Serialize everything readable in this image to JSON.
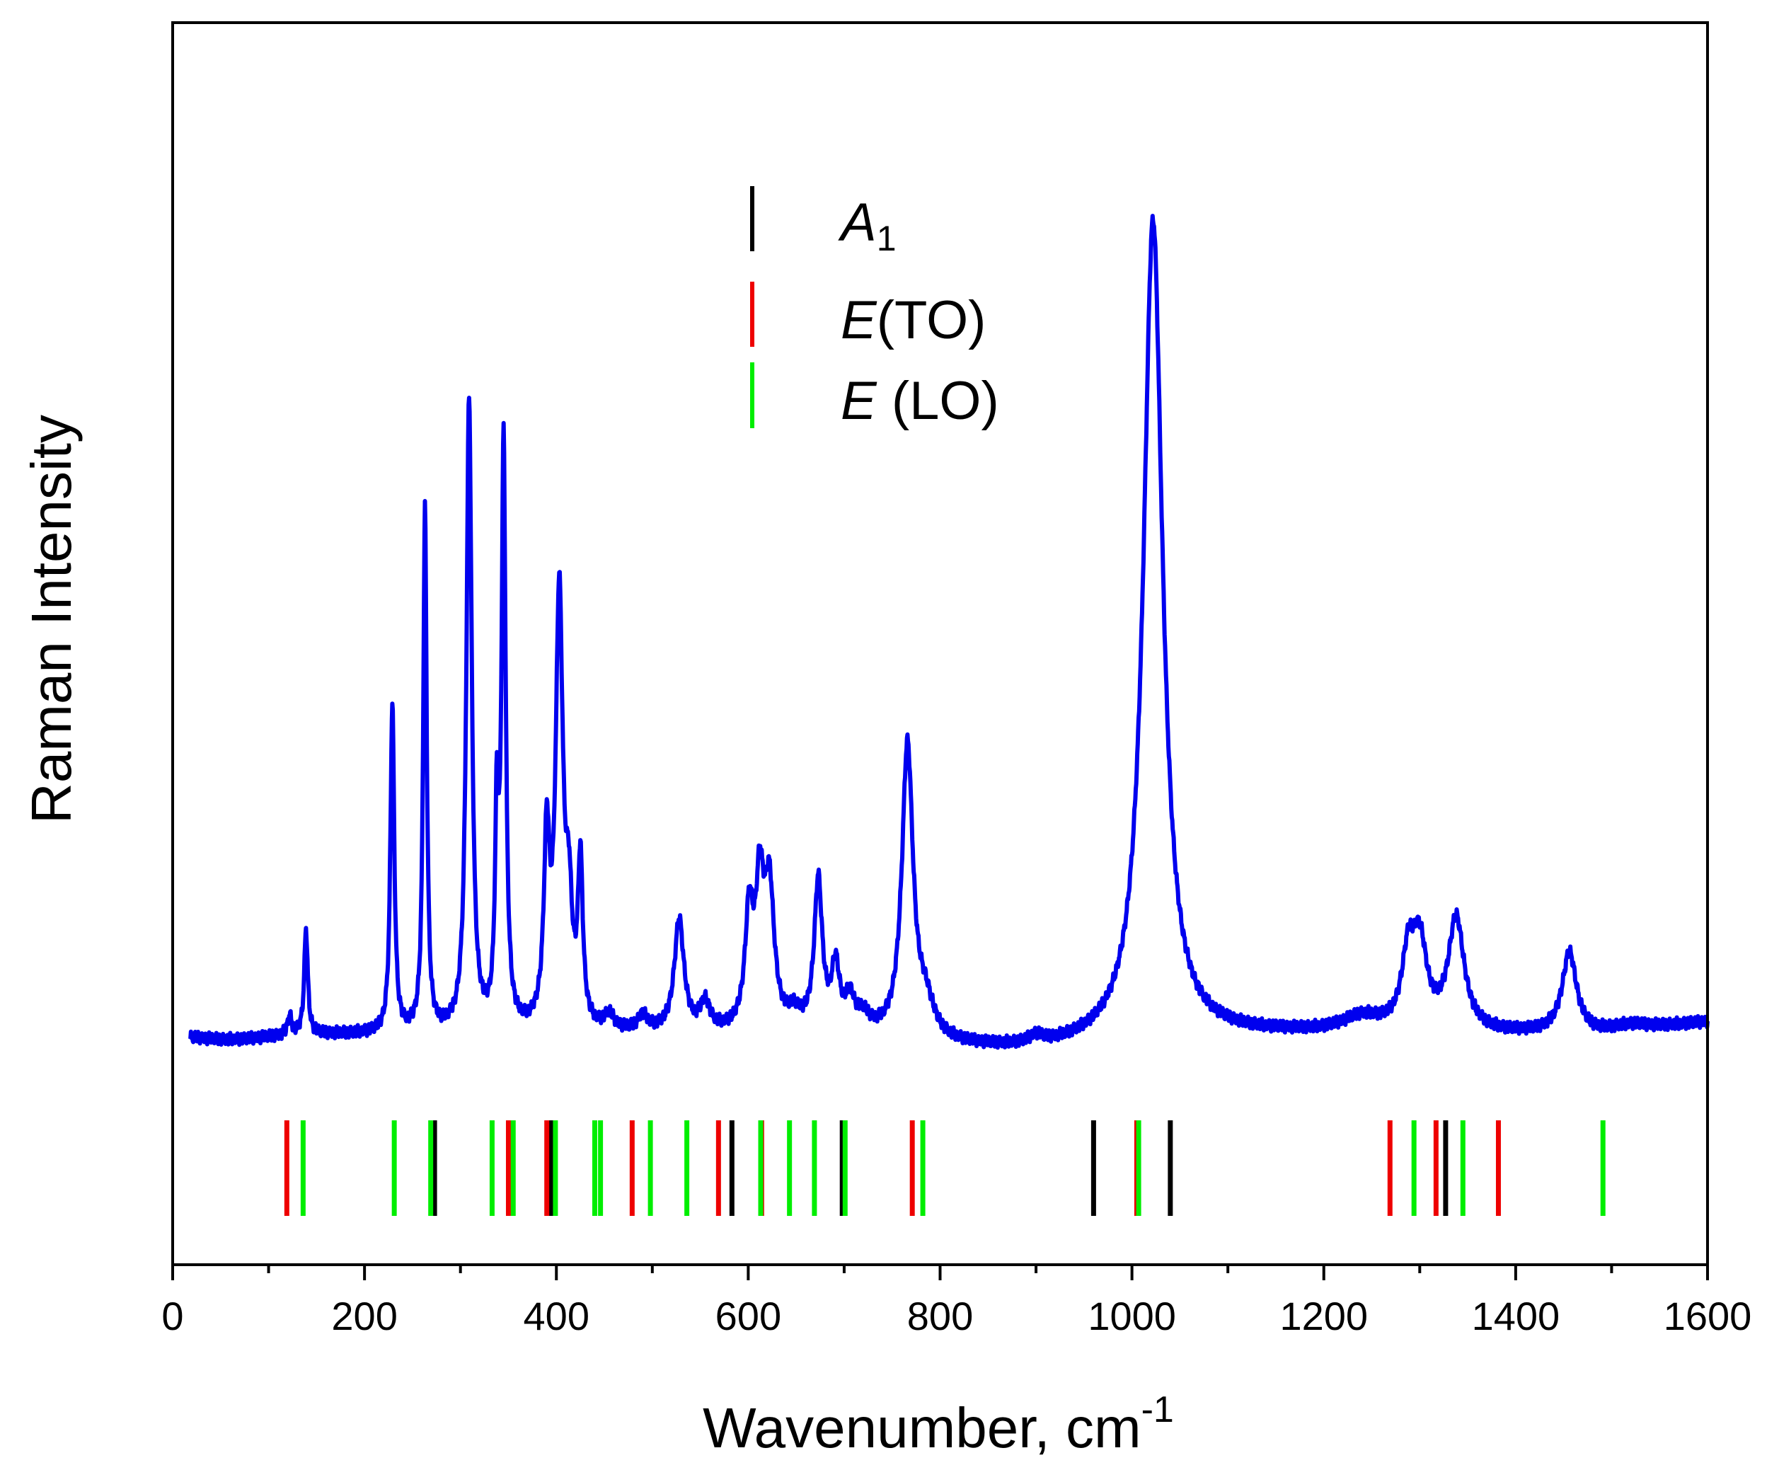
{
  "chart_data": {
    "type": "line",
    "title": "",
    "xlabel": "Wavenumber, cm",
    "xlabel_superscript": "-1",
    "ylabel": "Raman Intensity",
    "xlim": [
      0,
      1600
    ],
    "ylim": [
      0,
      1
    ],
    "x_ticks": [
      0,
      200,
      400,
      600,
      800,
      1000,
      1200,
      1400,
      1600
    ],
    "x_tick_labels": [
      "0",
      "200",
      "400",
      "600",
      "800",
      "1000",
      "1200",
      "1400",
      "1600"
    ],
    "x_minor_ticks": [
      100,
      300,
      500,
      700,
      900,
      1100,
      1300,
      1500
    ],
    "y_ticks_shown": false,
    "grid": false,
    "baseline": 0.185,
    "series": [
      {
        "name": "Raman spectrum",
        "color": "#0000ee",
        "x_start": 18,
        "x_end": 1600,
        "peaks": [
          {
            "x": 122,
            "height": 0.015,
            "width": 2.5
          },
          {
            "x": 139,
            "height": 0.085,
            "width": 2.2
          },
          {
            "x": 229,
            "height": 0.265,
            "width": 2.4
          },
          {
            "x": 263,
            "height": 0.42,
            "width": 2.2
          },
          {
            "x": 309,
            "height": 0.51,
            "width": 3.3
          },
          {
            "x": 338,
            "height": 0.16,
            "width": 2.2
          },
          {
            "x": 345,
            "height": 0.465,
            "width": 2.6
          },
          {
            "x": 390,
            "height": 0.145,
            "width": 3.5
          },
          {
            "x": 403,
            "height": 0.345,
            "width": 4.5
          },
          {
            "x": 413,
            "height": 0.085,
            "width": 4.0
          },
          {
            "x": 425,
            "height": 0.13,
            "width": 3.0
          },
          {
            "x": 455,
            "height": 0.012,
            "width": 6
          },
          {
            "x": 490,
            "height": 0.012,
            "width": 6
          },
          {
            "x": 528,
            "height": 0.09,
            "width": 6
          },
          {
            "x": 555,
            "height": 0.022,
            "width": 6
          },
          {
            "x": 601,
            "height": 0.09,
            "width": 5
          },
          {
            "x": 612,
            "height": 0.105,
            "width": 5
          },
          {
            "x": 622,
            "height": 0.11,
            "width": 6
          },
          {
            "x": 648,
            "height": 0.012,
            "width": 8
          },
          {
            "x": 673,
            "height": 0.12,
            "width": 5
          },
          {
            "x": 691,
            "height": 0.05,
            "width": 5
          },
          {
            "x": 706,
            "height": 0.025,
            "width": 6
          },
          {
            "x": 720,
            "height": 0.012,
            "width": 8
          },
          {
            "x": 766,
            "height": 0.235,
            "width": 7
          },
          {
            "x": 785,
            "height": 0.025,
            "width": 10
          },
          {
            "x": 900,
            "height": 0.006,
            "width": 8
          },
          {
            "x": 1022,
            "height": 0.66,
            "width": 12
          },
          {
            "x": 1240,
            "height": 0.012,
            "width": 25
          },
          {
            "x": 1288,
            "height": 0.055,
            "width": 8
          },
          {
            "x": 1300,
            "height": 0.065,
            "width": 9
          },
          {
            "x": 1338,
            "height": 0.09,
            "width": 10
          },
          {
            "x": 1456,
            "height": 0.065,
            "width": 9
          },
          {
            "x": 1520,
            "height": 0.004,
            "width": 20
          }
        ]
      }
    ],
    "mode_markers": [
      {
        "label": "A1",
        "color": "#000000",
        "positions": [
          273,
          395,
          583,
          698,
          960,
          1040,
          1327
        ]
      },
      {
        "label": "E(TO)",
        "color": "#ee0000",
        "positions": [
          119,
          350,
          390,
          479,
          569,
          614,
          771,
          1005,
          1269,
          1317,
          1382
        ]
      },
      {
        "label": "E (LO)",
        "color": "#00ee00",
        "positions": [
          136,
          231,
          269,
          333,
          355,
          399,
          440,
          446,
          498,
          536,
          613,
          643,
          669,
          701,
          782,
          1007,
          1294,
          1345,
          1491
        ]
      }
    ],
    "legend": {
      "position": "top-center",
      "entries": [
        {
          "main": "A",
          "sub": "1",
          "suffix": "",
          "color": "#000000"
        },
        {
          "main": "E",
          "sub": "",
          "suffix": "(TO)",
          "color": "#ee0000"
        },
        {
          "main": "E",
          "sub": "",
          "suffix": " (LO)",
          "color": "#00ee00"
        }
      ]
    }
  }
}
